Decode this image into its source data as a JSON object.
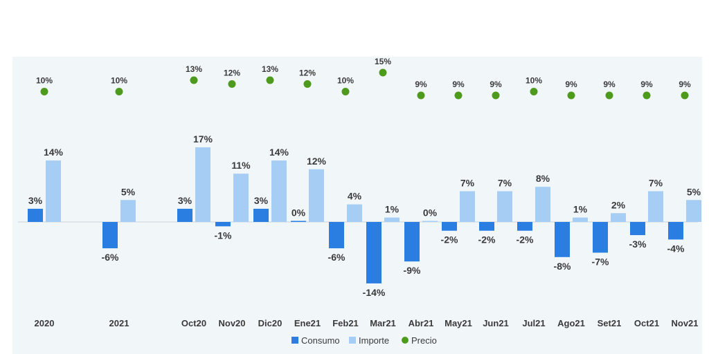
{
  "chart_data": {
    "type": "bar",
    "title": "",
    "xlabel": "",
    "ylabel": "",
    "ylim": [
      -14,
      17
    ],
    "categories": [
      "2020",
      "2021",
      "Oct20",
      "Nov20",
      "Dic20",
      "Ene21",
      "Feb21",
      "Mar21",
      "Abr21",
      "May21",
      "Jun21",
      "Jul21",
      "Ago21",
      "Set21",
      "Oct21",
      "Nov21"
    ],
    "series": [
      {
        "name": "Consumo",
        "kind": "bar",
        "color": "#2a7de1",
        "values": [
          3,
          -6,
          3,
          -1,
          3,
          0,
          -6,
          -14,
          -9,
          -2,
          -2,
          -2,
          -8,
          -7,
          -3,
          -4
        ],
        "labels": [
          "3%",
          "-6%",
          "3%",
          "-1%",
          "3%",
          "0%",
          "-6%",
          "-14%",
          "-9%",
          "-2%",
          "-2%",
          "-2%",
          "-8%",
          "-7%",
          "-3%",
          "-4%"
        ]
      },
      {
        "name": "Importe",
        "kind": "bar",
        "color": "#a6cdf3",
        "values": [
          14,
          5,
          17,
          11,
          14,
          12,
          4,
          1,
          0,
          7,
          7,
          8,
          1,
          2,
          7,
          5
        ],
        "labels": [
          "14%",
          "5%",
          "17%",
          "11%",
          "14%",
          "12%",
          "4%",
          "1%",
          "0%",
          "7%",
          "7%",
          "8%",
          "1%",
          "2%",
          "7%",
          "5%"
        ]
      },
      {
        "name": "Precio",
        "kind": "dot",
        "color": "#4e9a1c",
        "values": [
          10,
          10,
          13,
          12,
          13,
          12,
          10,
          15,
          9,
          9,
          9,
          10,
          9,
          9,
          9,
          9
        ],
        "labels": [
          "10%",
          "10%",
          "13%",
          "12%",
          "13%",
          "12%",
          "10%",
          "15%",
          "9%",
          "9%",
          "9%",
          "10%",
          "9%",
          "9%",
          "9%",
          "9%"
        ]
      }
    ],
    "legend": {
      "position": "bottom-center",
      "items": [
        "Consumo",
        "Importe",
        "Precio"
      ]
    },
    "grid": false
  }
}
